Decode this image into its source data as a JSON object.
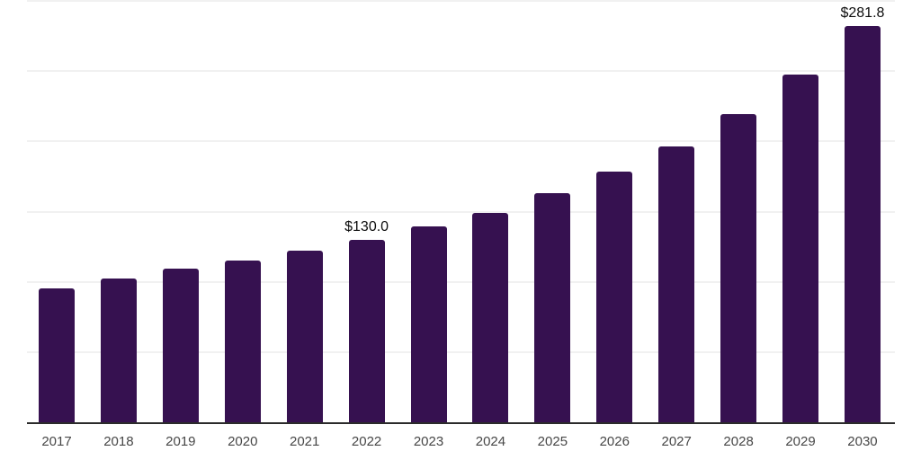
{
  "colors": {
    "background": "#ffffff",
    "bar": "#361150",
    "gridline": "#f1f1f1",
    "axis_line": "#2b2b2b",
    "tick_label": "#474747",
    "data_label": "#0d0d0d"
  },
  "chart_data": {
    "type": "bar",
    "title": "",
    "xlabel": "",
    "ylabel": "",
    "categories": [
      "2017",
      "2018",
      "2019",
      "2020",
      "2021",
      "2022",
      "2023",
      "2024",
      "2025",
      "2026",
      "2027",
      "2028",
      "2029",
      "2030"
    ],
    "values": [
      95.3,
      102.3,
      109.3,
      115.1,
      122.4,
      130.0,
      139.4,
      149.2,
      163.3,
      178.5,
      196.6,
      219.2,
      247.7,
      281.8
    ],
    "data_labels": {
      "2022": "$130.0",
      "2030": "$281.8"
    },
    "ylim": [
      0,
      300
    ],
    "gridline_step": 50,
    "grid": true,
    "legend": false,
    "y_axis_tick_labels_visible": false
  }
}
